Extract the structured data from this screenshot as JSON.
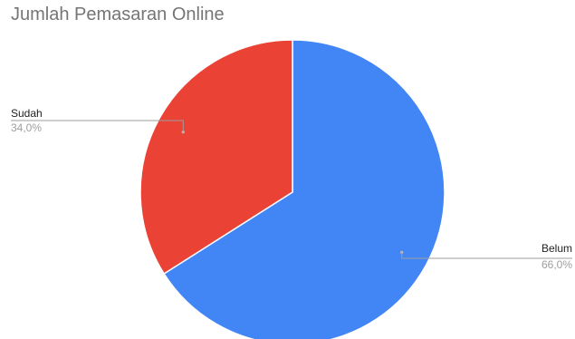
{
  "chart_data": {
    "type": "pie",
    "title": "Jumlah Pemasaran Online",
    "slices": [
      {
        "label": "Belum",
        "value": 66.0,
        "percent_label": "66,0%",
        "color": "#4285f4"
      },
      {
        "label": "Sudah",
        "value": 34.0,
        "percent_label": "34,0%",
        "color": "#ea4335"
      }
    ],
    "legend": "none",
    "data_labels": "outside-leader-lines"
  }
}
